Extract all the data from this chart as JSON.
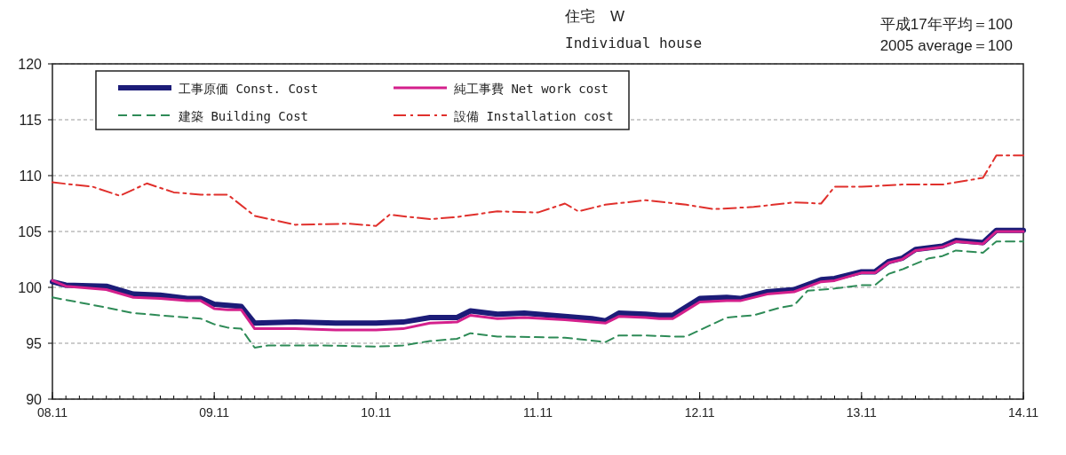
{
  "chart_data": {
    "type": "line",
    "title": "住宅　W",
    "subtitle": "Individual house",
    "annotations": [
      "平成17年平均＝100",
      "2005 average＝100"
    ],
    "xlim": [
      "2008-11",
      "2014-11"
    ],
    "ylim": [
      90,
      120
    ],
    "yticks": [
      90,
      95,
      100,
      105,
      110,
      115,
      120
    ],
    "xticks": [
      {
        "value": "2008-11",
        "label": "08.11"
      },
      {
        "value": "2009-11",
        "label": "09.11"
      },
      {
        "value": "2010-11",
        "label": "10.11"
      },
      {
        "value": "2011-11",
        "label": "11.11"
      },
      {
        "value": "2012-11",
        "label": "12.11"
      },
      {
        "value": "2013-11",
        "label": "13.11"
      },
      {
        "value": "2014-11",
        "label": "14.11"
      }
    ],
    "grid": "y",
    "legend": "top",
    "marker": "none",
    "x": [
      "2008-11",
      "2008-12",
      "2009-03",
      "2009-05",
      "2009-07",
      "2009-09",
      "2009-10",
      "2009-11",
      "2009-12",
      "2010-01",
      "2010-02",
      "2010-05",
      "2010-08",
      "2010-11",
      "2011-01",
      "2011-03",
      "2011-05",
      "2011-06",
      "2011-08",
      "2011-10",
      "2012-01",
      "2012-03",
      "2012-04",
      "2012-05",
      "2012-07",
      "2012-08",
      "2012-09",
      "2012-11",
      "2013-01",
      "2013-02",
      "2013-04",
      "2013-06",
      "2013-08",
      "2013-09",
      "2013-11",
      "2013-12",
      "2014-01",
      "2014-02",
      "2014-03",
      "2014-05",
      "2014-06",
      "2014-08",
      "2014-09",
      "2014-11"
    ],
    "series": [
      {
        "name": "工事原価 Const. Cost",
        "color": "#1c1c78",
        "line_style": "solid",
        "values": [
          100.5,
          100.2,
          100.1,
          99.4,
          99.3,
          99.0,
          99.0,
          98.5,
          98.4,
          98.3,
          96.8,
          96.9,
          96.8,
          96.8,
          96.9,
          97.3,
          97.3,
          97.9,
          97.6,
          97.7,
          97.4,
          97.2,
          97.0,
          97.7,
          97.6,
          97.5,
          97.5,
          99.0,
          99.1,
          99.0,
          99.6,
          99.8,
          100.7,
          100.8,
          101.4,
          101.4,
          102.3,
          102.6,
          103.4,
          103.7,
          104.2,
          104.0,
          105.1,
          105.1
        ]
      },
      {
        "name": "純工事費 Net work cost",
        "color": "#d4208c",
        "line_style": "solid",
        "values": [
          100.6,
          100.1,
          99.8,
          99.1,
          99.0,
          98.8,
          98.8,
          98.1,
          98.0,
          98.0,
          96.3,
          96.3,
          96.2,
          96.2,
          96.3,
          96.8,
          96.9,
          97.5,
          97.2,
          97.3,
          97.1,
          96.9,
          96.8,
          97.4,
          97.3,
          97.2,
          97.2,
          98.7,
          98.8,
          98.8,
          99.4,
          99.6,
          100.5,
          100.6,
          101.3,
          101.3,
          102.2,
          102.5,
          103.3,
          103.6,
          104.1,
          103.9,
          105.0,
          105.0
        ]
      },
      {
        "name": "建築 Building Cost",
        "color": "#2e8b57",
        "line_style": "dashed",
        "x": [
          "2008-11",
          "2009-03",
          "2009-05",
          "2009-07",
          "2009-09",
          "2009-10",
          "2009-11",
          "2009-12",
          "2010-01",
          "2010-02",
          "2010-03",
          "2010-07",
          "2010-11",
          "2011-01",
          "2011-03",
          "2011-05",
          "2011-06",
          "2011-08",
          "2012-01",
          "2012-04",
          "2012-05",
          "2012-07",
          "2012-09",
          "2012-10",
          "2013-01",
          "2013-03",
          "2013-05",
          "2013-06",
          "2013-07",
          "2013-09",
          "2013-11",
          "2013-12",
          "2014-01",
          "2014-02",
          "2014-04",
          "2014-05",
          "2014-06",
          "2014-08",
          "2014-09",
          "2014-11"
        ],
        "values": [
          99.1,
          98.2,
          97.7,
          97.5,
          97.3,
          97.2,
          96.7,
          96.4,
          96.3,
          94.6,
          94.8,
          94.8,
          94.7,
          94.8,
          95.2,
          95.4,
          95.9,
          95.6,
          95.5,
          95.1,
          95.7,
          95.7,
          95.6,
          95.6,
          97.3,
          97.5,
          98.2,
          98.4,
          99.7,
          99.9,
          100.2,
          100.2,
          101.2,
          101.6,
          102.6,
          102.8,
          103.3,
          103.1,
          104.1,
          104.1
        ]
      },
      {
        "name": "設備 Installation cost",
        "color": "#e0302c",
        "line_style": "dashdot",
        "x": [
          "2008-11",
          "2009-02",
          "2009-04",
          "2009-06",
          "2009-08",
          "2009-10",
          "2009-12",
          "2010-02",
          "2010-05",
          "2010-09",
          "2010-11",
          "2010-12",
          "2011-03",
          "2011-05",
          "2011-08",
          "2011-11",
          "2012-01",
          "2012-02",
          "2012-04",
          "2012-07",
          "2012-10",
          "2012-12",
          "2013-03",
          "2013-06",
          "2013-08",
          "2013-09",
          "2013-11",
          "2014-02",
          "2014-05",
          "2014-07",
          "2014-08",
          "2014-09",
          "2014-11"
        ],
        "values": [
          109.4,
          109.0,
          108.2,
          109.3,
          108.5,
          108.3,
          108.3,
          106.4,
          105.6,
          105.7,
          105.5,
          106.5,
          106.1,
          106.3,
          106.8,
          106.7,
          107.5,
          106.8,
          107.4,
          107.8,
          107.4,
          107.0,
          107.2,
          107.6,
          107.5,
          109.0,
          109.0,
          109.2,
          109.2,
          109.6,
          109.8,
          111.8,
          111.8
        ]
      }
    ]
  }
}
